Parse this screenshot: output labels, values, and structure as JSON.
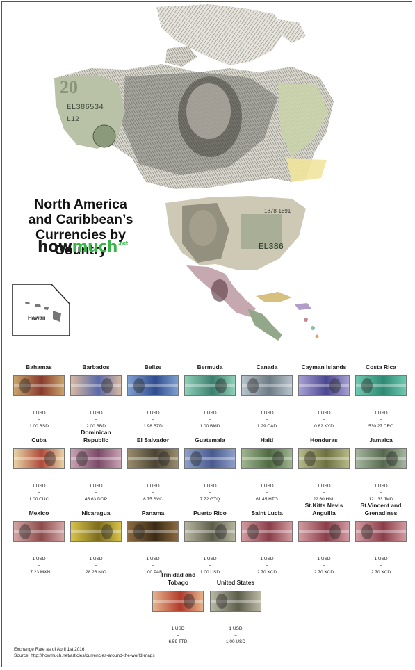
{
  "title_lines": [
    "North America",
    "and Caribbean’s",
    "Currencies by Country"
  ],
  "logo": {
    "word_a": "how",
    "word_b": "much",
    "suffix": ".net"
  },
  "hawaii_label": "Hawaii",
  "footer": {
    "rate_note": "Exchange Rate as of April 1st 2016",
    "source": "Source: http://howmuch.net/articles/currencies-around-the-world-maps"
  },
  "usd_label": "1 USD",
  "equals": "=",
  "countries": [
    {
      "name": "Bahamas",
      "rate": "1.00 BSD",
      "color": "#c9a46a",
      "accent": "#8a3b2e"
    },
    {
      "name": "Barbados",
      "rate": "2.00 BBD",
      "color": "#d8b9a0",
      "accent": "#5a6aa8"
    },
    {
      "name": "Belize",
      "rate": "1.98 BZD",
      "color": "#7f9ed0",
      "accent": "#2f4d8f"
    },
    {
      "name": "Bermuda",
      "rate": "1.00 BMD",
      "color": "#8fd0b8",
      "accent": "#3c7f6f"
    },
    {
      "name": "Canada",
      "rate": "1.29 CAD",
      "color": "#b8c4cc",
      "accent": "#6d7c86"
    },
    {
      "name": "Cayman Islands",
      "rate": "0.82 KYD",
      "color": "#a7a0d4",
      "accent": "#4b4790"
    },
    {
      "name": "Costa Rica",
      "rate": "530.27 CRC",
      "color": "#6fc9b0",
      "accent": "#2f8a74"
    },
    {
      "name": "Cuba",
      "rate": "1.00 CUC",
      "color": "#e7d4a7",
      "accent": "#b04a3a"
    },
    {
      "name": "Dominican Republic",
      "rate": "45.63 DOP",
      "color": "#c9a2b4",
      "accent": "#7b4a67"
    },
    {
      "name": "El Salvador",
      "rate": "8.75 SVC",
      "color": "#9a8d6d",
      "accent": "#4b4333"
    },
    {
      "name": "Guatemala",
      "rate": "7.72 GTQ",
      "color": "#8da0c8",
      "accent": "#4a5a90"
    },
    {
      "name": "Haiti",
      "rate": "61.45 HTG",
      "color": "#9fb690",
      "accent": "#4e6a43"
    },
    {
      "name": "Honduras",
      "rate": "22.60 HNL",
      "color": "#b6ba86",
      "accent": "#6d7040"
    },
    {
      "name": "Jamaica",
      "rate": "121.33 JMD",
      "color": "#a6b79f",
      "accent": "#55684d"
    },
    {
      "name": "Mexico",
      "rate": "17.23 MXN",
      "color": "#d4a6a6",
      "accent": "#8d4b4b"
    },
    {
      "name": "Nicaragua",
      "rate": "28.26 NIO",
      "color": "#d8c34a",
      "accent": "#7c6b1c"
    },
    {
      "name": "Panama",
      "rate": "1.00 PAB",
      "color": "#8c6a3e",
      "accent": "#3a2a16"
    },
    {
      "name": "Puerto Rico",
      "rate": "1.00 USD",
      "color": "#b6b6a0",
      "accent": "#5c5c4a"
    },
    {
      "name": "Saint Lucia",
      "rate": "2.70 XCD",
      "color": "#d39aa0",
      "accent": "#8a3e4a"
    },
    {
      "name": "St.Kitts Nevis Anguilla",
      "rate": "2.70 XCD",
      "color": "#d39aa0",
      "accent": "#8a3e4a"
    },
    {
      "name": "St.Vincent and Grenadines",
      "rate": "2.70 XCD",
      "color": "#d39aa0",
      "accent": "#8a3e4a"
    },
    {
      "name": "Trinidad and Tobago",
      "rate": "6.59 TTD",
      "color": "#e6b48c",
      "accent": "#b23a2a"
    },
    {
      "name": "United States",
      "rate": "1.00 USD",
      "color": "#b9b9a4",
      "accent": "#5e5e4c"
    }
  ]
}
